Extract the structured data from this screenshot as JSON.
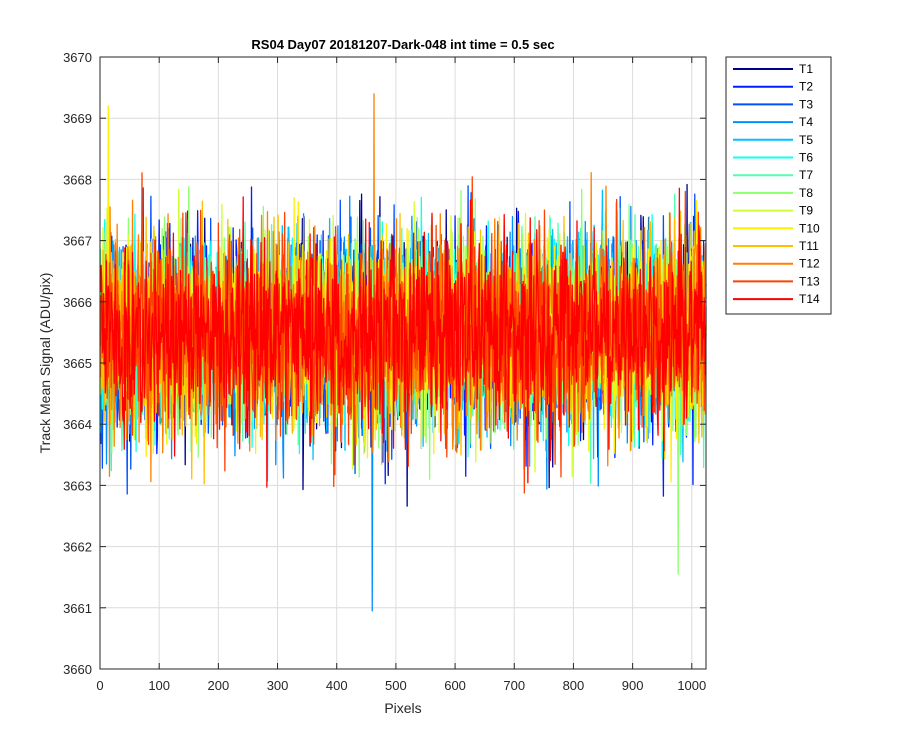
{
  "chart_data": {
    "type": "line",
    "title": "RS04 Day07 20181207-Dark-048 int time = 0.5 sec",
    "xlabel": "Pixels",
    "ylabel": "Track Mean Signal (ADU/pix)",
    "xlim": [
      0,
      1024
    ],
    "ylim": [
      3660,
      3670
    ],
    "x_ticks": [
      0,
      100,
      200,
      300,
      400,
      500,
      600,
      700,
      800,
      900,
      1000
    ],
    "y_ticks": [
      3660,
      3661,
      3662,
      3663,
      3664,
      3665,
      3666,
      3667,
      3668,
      3669,
      3670
    ],
    "grid": true,
    "legend_position": "outside-top-right",
    "x_range_per_series": [
      1,
      1024
    ],
    "approx_mean": 3665.5,
    "approx_noise_std": 0.9,
    "series": [
      {
        "name": "T1",
        "color": "#00008f",
        "mean": 3665.5,
        "spread": 0.9
      },
      {
        "name": "T2",
        "color": "#0020ff",
        "mean": 3665.5,
        "spread": 0.9
      },
      {
        "name": "T3",
        "color": "#0050ff",
        "mean": 3665.5,
        "spread": 0.9
      },
      {
        "name": "T4",
        "color": "#008fff",
        "mean": 3665.5,
        "spread": 0.9
      },
      {
        "name": "T5",
        "color": "#00c0ff",
        "mean": 3665.5,
        "spread": 0.9
      },
      {
        "name": "T6",
        "color": "#10ffef",
        "mean": 3665.5,
        "spread": 0.9
      },
      {
        "name": "T7",
        "color": "#50ffaf",
        "mean": 3665.5,
        "spread": 0.9
      },
      {
        "name": "T8",
        "color": "#8fff70",
        "mean": 3665.5,
        "spread": 0.9
      },
      {
        "name": "T9",
        "color": "#cfff30",
        "mean": 3665.5,
        "spread": 0.9
      },
      {
        "name": "T10",
        "color": "#ffef00",
        "mean": 3665.5,
        "spread": 0.9
      },
      {
        "name": "T11",
        "color": "#ffbf00",
        "mean": 3665.5,
        "spread": 0.9
      },
      {
        "name": "T12",
        "color": "#ff8000",
        "mean": 3665.5,
        "spread": 0.9
      },
      {
        "name": "T13",
        "color": "#ff4000",
        "mean": 3665.5,
        "spread": 0.9
      },
      {
        "name": "T14",
        "color": "#ff0000",
        "mean": 3665.5,
        "spread": 0.9
      }
    ],
    "notable_extremes": [
      {
        "series": "T4",
        "x": 460,
        "y": 3660.95
      },
      {
        "series": "T12",
        "x": 463,
        "y": 3669.4
      },
      {
        "series": "T8",
        "x": 977,
        "y": 3661.55
      },
      {
        "series": "T10",
        "x": 14,
        "y": 3669.2
      }
    ]
  }
}
